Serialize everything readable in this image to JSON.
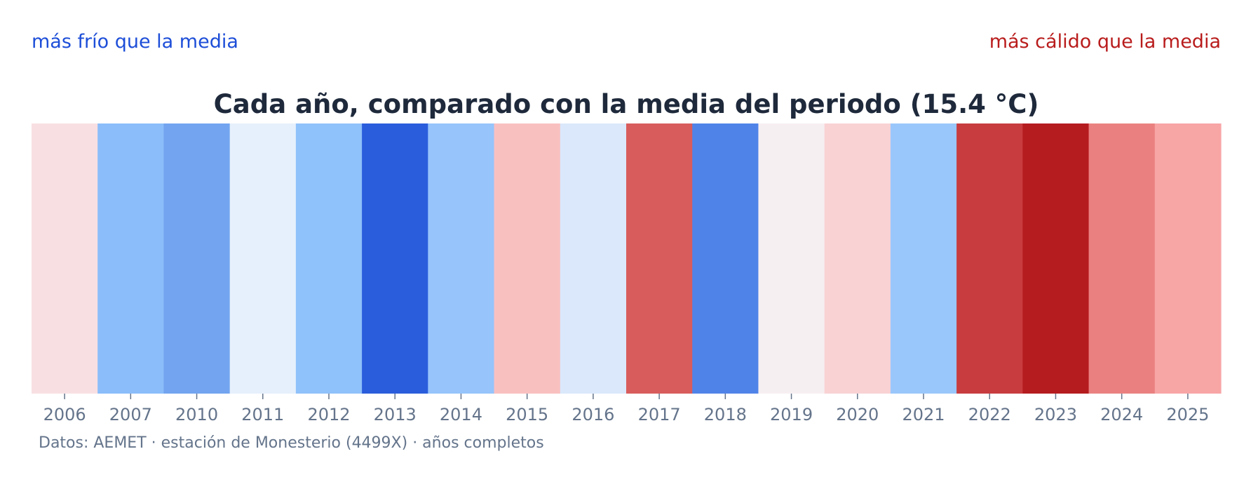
{
  "legend": {
    "cold_label": "más frío que la media",
    "warm_label": "más cálido que la media",
    "cold_color": "#1d4ed8",
    "warm_color": "#b91c1c"
  },
  "source_note": "Datos: AEMET · estación de Monesterio (4499X) · años completos",
  "colors": {
    "title": "#1e293b",
    "ticks": "#64748b",
    "source": "#64748b"
  },
  "chart_data": {
    "type": "heatmap",
    "title": "Cada año, comparado con la media del periodo (15.4 °C)",
    "xlabel": "",
    "ylabel": "",
    "grid": false,
    "categories": [
      "2006",
      "2007",
      "2010",
      "2011",
      "2012",
      "2013",
      "2014",
      "2015",
      "2016",
      "2017",
      "2018",
      "2019",
      "2020",
      "2021",
      "2022",
      "2023",
      "2024",
      "2025"
    ],
    "colors": [
      "#f8e0e2",
      "#8bbdfa",
      "#72a4f0",
      "#e6f0fc",
      "#8fc1fa",
      "#2a5ddc",
      "#96c4fb",
      "#f9c0c0",
      "#dbe8fb",
      "#d95c5c",
      "#5083e8",
      "#f6eff2",
      "#f9d2d4",
      "#9ac7fb",
      "#c83c3f",
      "#b51c1f",
      "#ea8180",
      "#f8a5a6"
    ]
  }
}
